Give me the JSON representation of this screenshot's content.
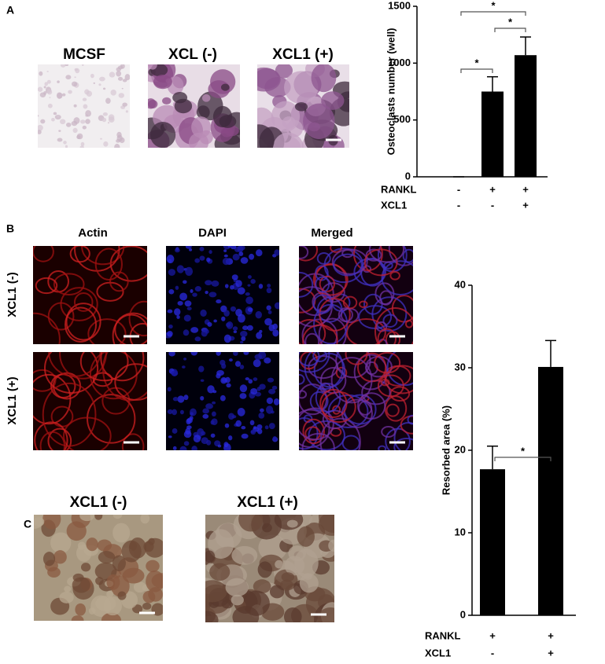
{
  "panels": {
    "A": {
      "label": "A",
      "images": [
        "MCSF",
        "XCL (-)",
        "XCL1 (+)"
      ]
    },
    "B": {
      "label": "B",
      "columns": [
        "Actin",
        "DAPI",
        "Merged"
      ],
      "rows": [
        "XCL1 (-)",
        "XCL1 (+)"
      ]
    },
    "C": {
      "label": "C",
      "images": [
        "XCL1 (-)",
        "XCL1 (+)"
      ]
    }
  },
  "chart_data": [
    {
      "type": "bar",
      "y_label": "Osteoclasts number (well)",
      "categories": [
        null,
        null,
        null
      ],
      "values": [
        0,
        750,
        1070
      ],
      "errors": [
        0,
        130,
        160
      ],
      "color": "#000000",
      "ylim": [
        0,
        1500
      ],
      "yticks": [
        0,
        500,
        1000,
        1500
      ],
      "conditions": [
        {
          "name": "RANKL",
          "values": [
            "-",
            "+",
            "+"
          ]
        },
        {
          "name": "XCL1",
          "values": [
            "-",
            "-",
            "+"
          ]
        }
      ],
      "significance": [
        "*",
        "*",
        "*"
      ]
    },
    {
      "type": "bar",
      "y_label": "Resorbed area (%)",
      "categories": [
        null,
        null
      ],
      "values": [
        17.7,
        30.1
      ],
      "errors": [
        2.8,
        3.2
      ],
      "color": "#000000",
      "ylim": [
        0,
        40
      ],
      "yticks": [
        0,
        10,
        20,
        30,
        40
      ],
      "conditions": [
        {
          "name": "RANKL",
          "values": [
            "+",
            "+"
          ]
        },
        {
          "name": "XCL1",
          "values": [
            "-",
            "+"
          ]
        }
      ],
      "significance": [
        "*"
      ]
    }
  ]
}
